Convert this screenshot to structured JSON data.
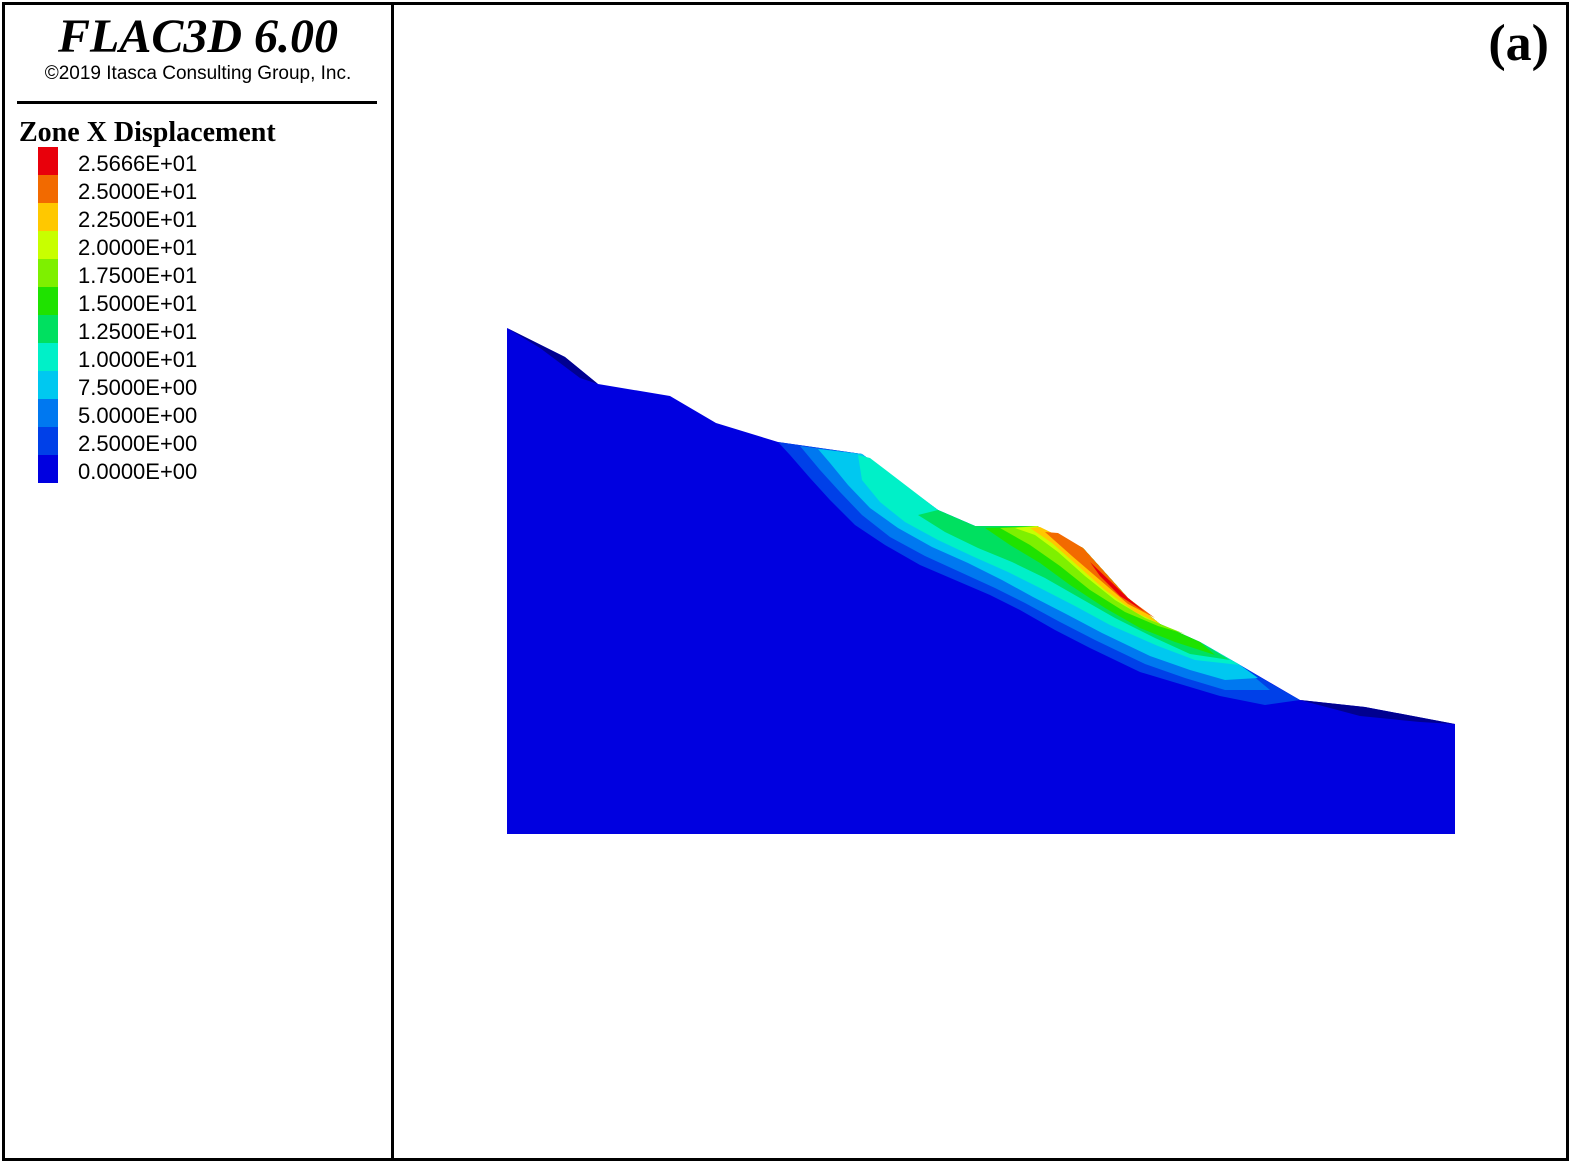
{
  "header": {
    "app_title": "FLAC3D 6.00",
    "copyright": "©2019 Itasca Consulting Group, Inc."
  },
  "legend": {
    "title": "Zone X Displacement",
    "items": [
      {
        "label": "2.5666E+01",
        "color": "#e8000b"
      },
      {
        "label": "2.5000E+01",
        "color": "#f26a00"
      },
      {
        "label": "2.2500E+01",
        "color": "#ffc800"
      },
      {
        "label": "2.0000E+01",
        "color": "#c8ff00"
      },
      {
        "label": "1.7500E+01",
        "color": "#7ef000"
      },
      {
        "label": "1.5000E+01",
        "color": "#1fe200"
      },
      {
        "label": "1.2500E+01",
        "color": "#00e060"
      },
      {
        "label": "1.0000E+01",
        "color": "#00f0c8"
      },
      {
        "label": "7.5000E+00",
        "color": "#00c8f0"
      },
      {
        "label": "5.0000E+00",
        "color": "#0078f0"
      },
      {
        "label": "2.5000E+00",
        "color": "#0040e8"
      },
      {
        "label": "0.0000E+00",
        "color": "#0000e0"
      }
    ]
  },
  "panel_label": "(a)",
  "colors": {
    "model_base": "#0000e0",
    "dark_edge": "#000090"
  }
}
